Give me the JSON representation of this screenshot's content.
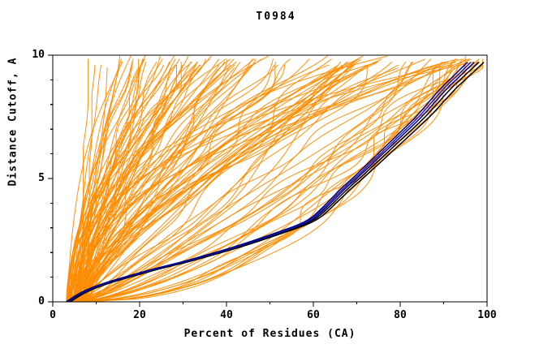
{
  "page": {
    "background": "#ffffff"
  },
  "chart_data": {
    "type": "line",
    "title": "T0984",
    "xlabel": "Percent of Residues (CA)",
    "ylabel": "Distance Cutoff, A",
    "xlim": [
      0,
      100
    ],
    "ylim": [
      0,
      10
    ],
    "grid": false,
    "legend": "none",
    "frame_color": "#000000",
    "text_color": "#000000",
    "x_ticks": {
      "values": [
        0,
        20,
        40,
        60,
        80,
        100
      ],
      "labels": [
        "0",
        "20",
        "40",
        "60",
        "80",
        "100"
      ],
      "minor_step": 10
    },
    "y_ticks": {
      "values": [
        0,
        5,
        10
      ],
      "labels": [
        "0",
        "5",
        "10"
      ],
      "minor_step": 1
    },
    "background_models": {
      "description": "pool of predicted model GDT curves",
      "color": "#ff8c00",
      "stroke_width": 1,
      "count": 130,
      "seed": 984,
      "p_start_range": [
        3,
        8
      ],
      "d_end_range": [
        9.55,
        10
      ],
      "types": [
        {
          "weight": 0.4,
          "pmax_range": [
            8,
            48
          ],
          "shape_range": [
            0.8,
            2.2
          ]
        },
        {
          "weight": 0.3,
          "pmax_range": [
            48,
            90
          ],
          "shape_range": [
            0.55,
            1.6
          ]
        },
        {
          "weight": 0.22,
          "pmax_range": [
            90,
            98
          ],
          "shape_range": [
            0.4,
            0.9
          ]
        },
        {
          "weight": 0.08,
          "pmax_range": [
            60,
            97
          ],
          "shape_range": [
            1.8,
            3.0
          ]
        }
      ],
      "wobble_amp_range": [
        0.01,
        0.06
      ],
      "wobble_freq_range": [
        0.5,
        2.5
      ]
    },
    "highlighted_models": {
      "description": "highlighted best models (dark bundle)",
      "stroke_width": 1.5,
      "base_curve": [
        [
          3.5,
          0
        ],
        [
          6,
          0.3
        ],
        [
          9,
          0.55
        ],
        [
          13,
          0.8
        ],
        [
          18,
          1.05
        ],
        [
          24,
          1.35
        ],
        [
          30,
          1.6
        ],
        [
          36,
          1.9
        ],
        [
          42,
          2.2
        ],
        [
          48,
          2.55
        ],
        [
          53,
          2.85
        ],
        [
          57,
          3.1
        ],
        [
          60,
          3.35
        ],
        [
          62,
          3.65
        ],
        [
          64,
          4.0
        ],
        [
          66,
          4.35
        ],
        [
          68,
          4.7
        ],
        [
          70,
          5.0
        ],
        [
          73,
          5.5
        ],
        [
          76,
          6.0
        ],
        [
          79,
          6.5
        ],
        [
          82,
          7.0
        ],
        [
          85,
          7.5
        ],
        [
          88,
          8.1
        ],
        [
          91,
          8.7
        ],
        [
          93.5,
          9.1
        ],
        [
          95.5,
          9.45
        ],
        [
          97,
          9.7
        ]
      ],
      "variants": [
        {
          "color": "#000000",
          "offset": 2.2
        },
        {
          "color": "#000000",
          "offset": 1.0
        },
        {
          "color": "#00008b",
          "offset": 0
        },
        {
          "color": "#2222aa",
          "offset": -0.8
        },
        {
          "color": "#00008b",
          "offset": -1.6
        }
      ]
    }
  }
}
